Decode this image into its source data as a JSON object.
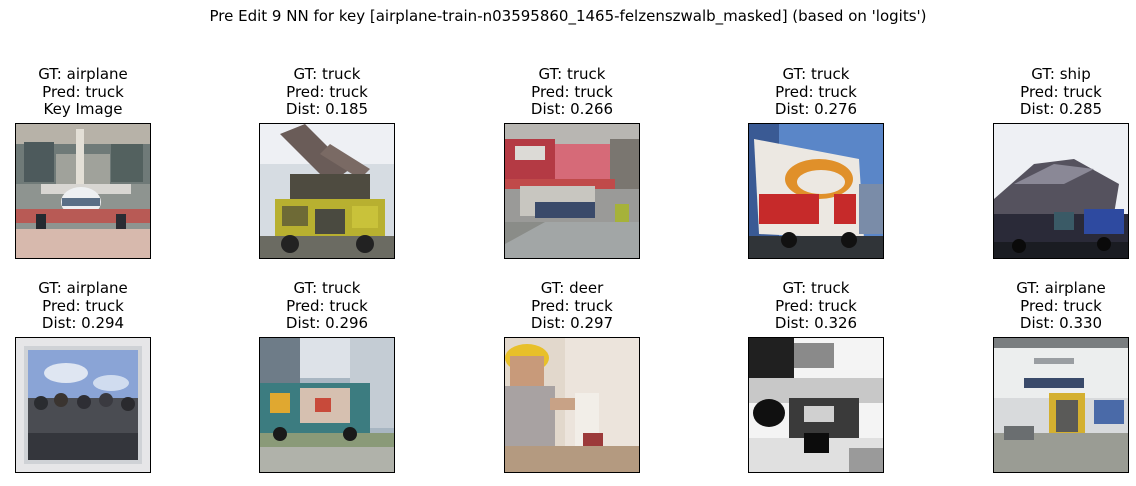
{
  "suptitle": "Pre Edit 9 NN for key [airplane-train-n03595860_1465-felzenszwalb_masked] (based on 'logits')",
  "panels": [
    {
      "gt": "GT: airplane",
      "pred": "Pred: truck",
      "extra": "Key Image",
      "image": {
        "name": "key-image-airplane-thumbnail",
        "description": "pixelated airplane nose in front of building"
      }
    },
    {
      "gt": "GT: truck",
      "pred": "Pred: truck",
      "extra": "Dist: 0.185",
      "image": {
        "name": "neighbor-1-truck-thumbnail",
        "description": "yellow fire truck with ladder"
      }
    },
    {
      "gt": "GT: truck",
      "pred": "Pred: truck",
      "extra": "Dist: 0.266",
      "image": {
        "name": "neighbor-2-truck-thumbnail",
        "description": "street with trucks and shops"
      }
    },
    {
      "gt": "GT: truck",
      "pred": "Pred: truck",
      "extra": "Dist: 0.276",
      "image": {
        "name": "neighbor-3-truck-thumbnail",
        "description": "white box truck with red and orange logo"
      }
    },
    {
      "gt": "GT: ship",
      "pred": "Pred: truck",
      "extra": "Dist: 0.285",
      "image": {
        "name": "neighbor-4-ship-thumbnail",
        "description": "dark covered vehicle"
      }
    },
    {
      "gt": "GT: airplane",
      "pred": "Pred: truck",
      "extra": "Dist: 0.294",
      "image": {
        "name": "neighbor-5-airplane-thumbnail",
        "description": "crowd under blue sky framed photo"
      }
    },
    {
      "gt": "GT: truck",
      "pred": "Pred: truck",
      "extra": "Dist: 0.296",
      "image": {
        "name": "neighbor-6-truck-thumbnail",
        "description": "colorful garbage truck on street"
      }
    },
    {
      "gt": "GT: deer",
      "pred": "Pred: truck",
      "extra": "Dist: 0.297",
      "image": {
        "name": "neighbor-7-deer-thumbnail",
        "description": "person in yellow hard hat indoors"
      }
    },
    {
      "gt": "GT: truck",
      "pred": "Pred: truck",
      "extra": "Dist: 0.326",
      "image": {
        "name": "neighbor-8-truck-thumbnail",
        "description": "black and white pixelated truck"
      }
    },
    {
      "gt": "GT: airplane",
      "pred": "Pred: truck",
      "extra": "Dist: 0.330",
      "image": {
        "name": "neighbor-9-airplane-thumbnail",
        "description": "white building with yellow door"
      }
    }
  ]
}
